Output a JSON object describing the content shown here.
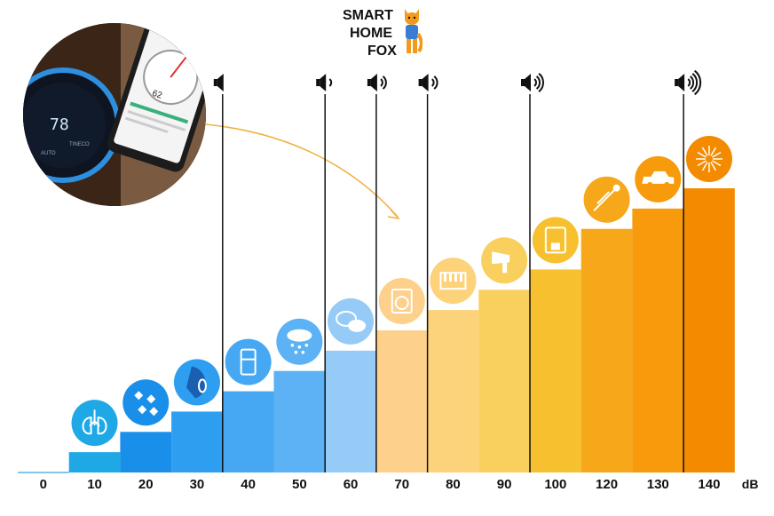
{
  "brand": {
    "line1": "SMART",
    "line2": "HOME",
    "line3": "FOX"
  },
  "photo": {
    "display_value": "78",
    "brand_text": "TINECO",
    "mode_text": "AUTO",
    "phone_value": "62"
  },
  "chart_data": {
    "type": "bar",
    "categories": [
      "0",
      "10",
      "20",
      "30",
      "40",
      "50",
      "60",
      "70",
      "80",
      "90",
      "100",
      "120",
      "130",
      "140"
    ],
    "values": [
      0,
      10,
      20,
      30,
      40,
      50,
      60,
      70,
      80,
      90,
      100,
      120,
      130,
      140
    ],
    "xlabel": "dB",
    "ylim": [
      0,
      140
    ],
    "legend": "none",
    "grid": false,
    "colors": [
      "#1ea8e6",
      "#1ea8e6",
      "#1a8fea",
      "#2e9ff0",
      "#46a8f2",
      "#5cb2f4",
      "#95cbf6",
      "#fdd08c",
      "#fcd27a",
      "#f9cf5e",
      "#f7c02e",
      "#f7a71a",
      "#f79a0c",
      "#f48a00"
    ],
    "icons": [
      "",
      "lungs-icon",
      "leaves-icon",
      "whisper-icon",
      "fridge-icon",
      "rain-icon",
      "chat-icon",
      "washing-machine-icon",
      "piano-icon",
      "hair-dryer-icon",
      "coffee-machine-icon",
      "trombone-icon",
      "police-car-icon",
      "fireworks-icon"
    ],
    "annotations": [
      {
        "type": "speaker-marker",
        "x": "40",
        "level": 0
      },
      {
        "type": "speaker-marker",
        "x": "60",
        "level": 1
      },
      {
        "type": "speaker-marker",
        "x": "70",
        "level": 2
      },
      {
        "type": "speaker-marker",
        "x": "80",
        "level": 2
      },
      {
        "type": "speaker-marker",
        "x": "100",
        "level": 3
      },
      {
        "type": "speaker-marker",
        "x": "140",
        "level": 4
      }
    ]
  }
}
